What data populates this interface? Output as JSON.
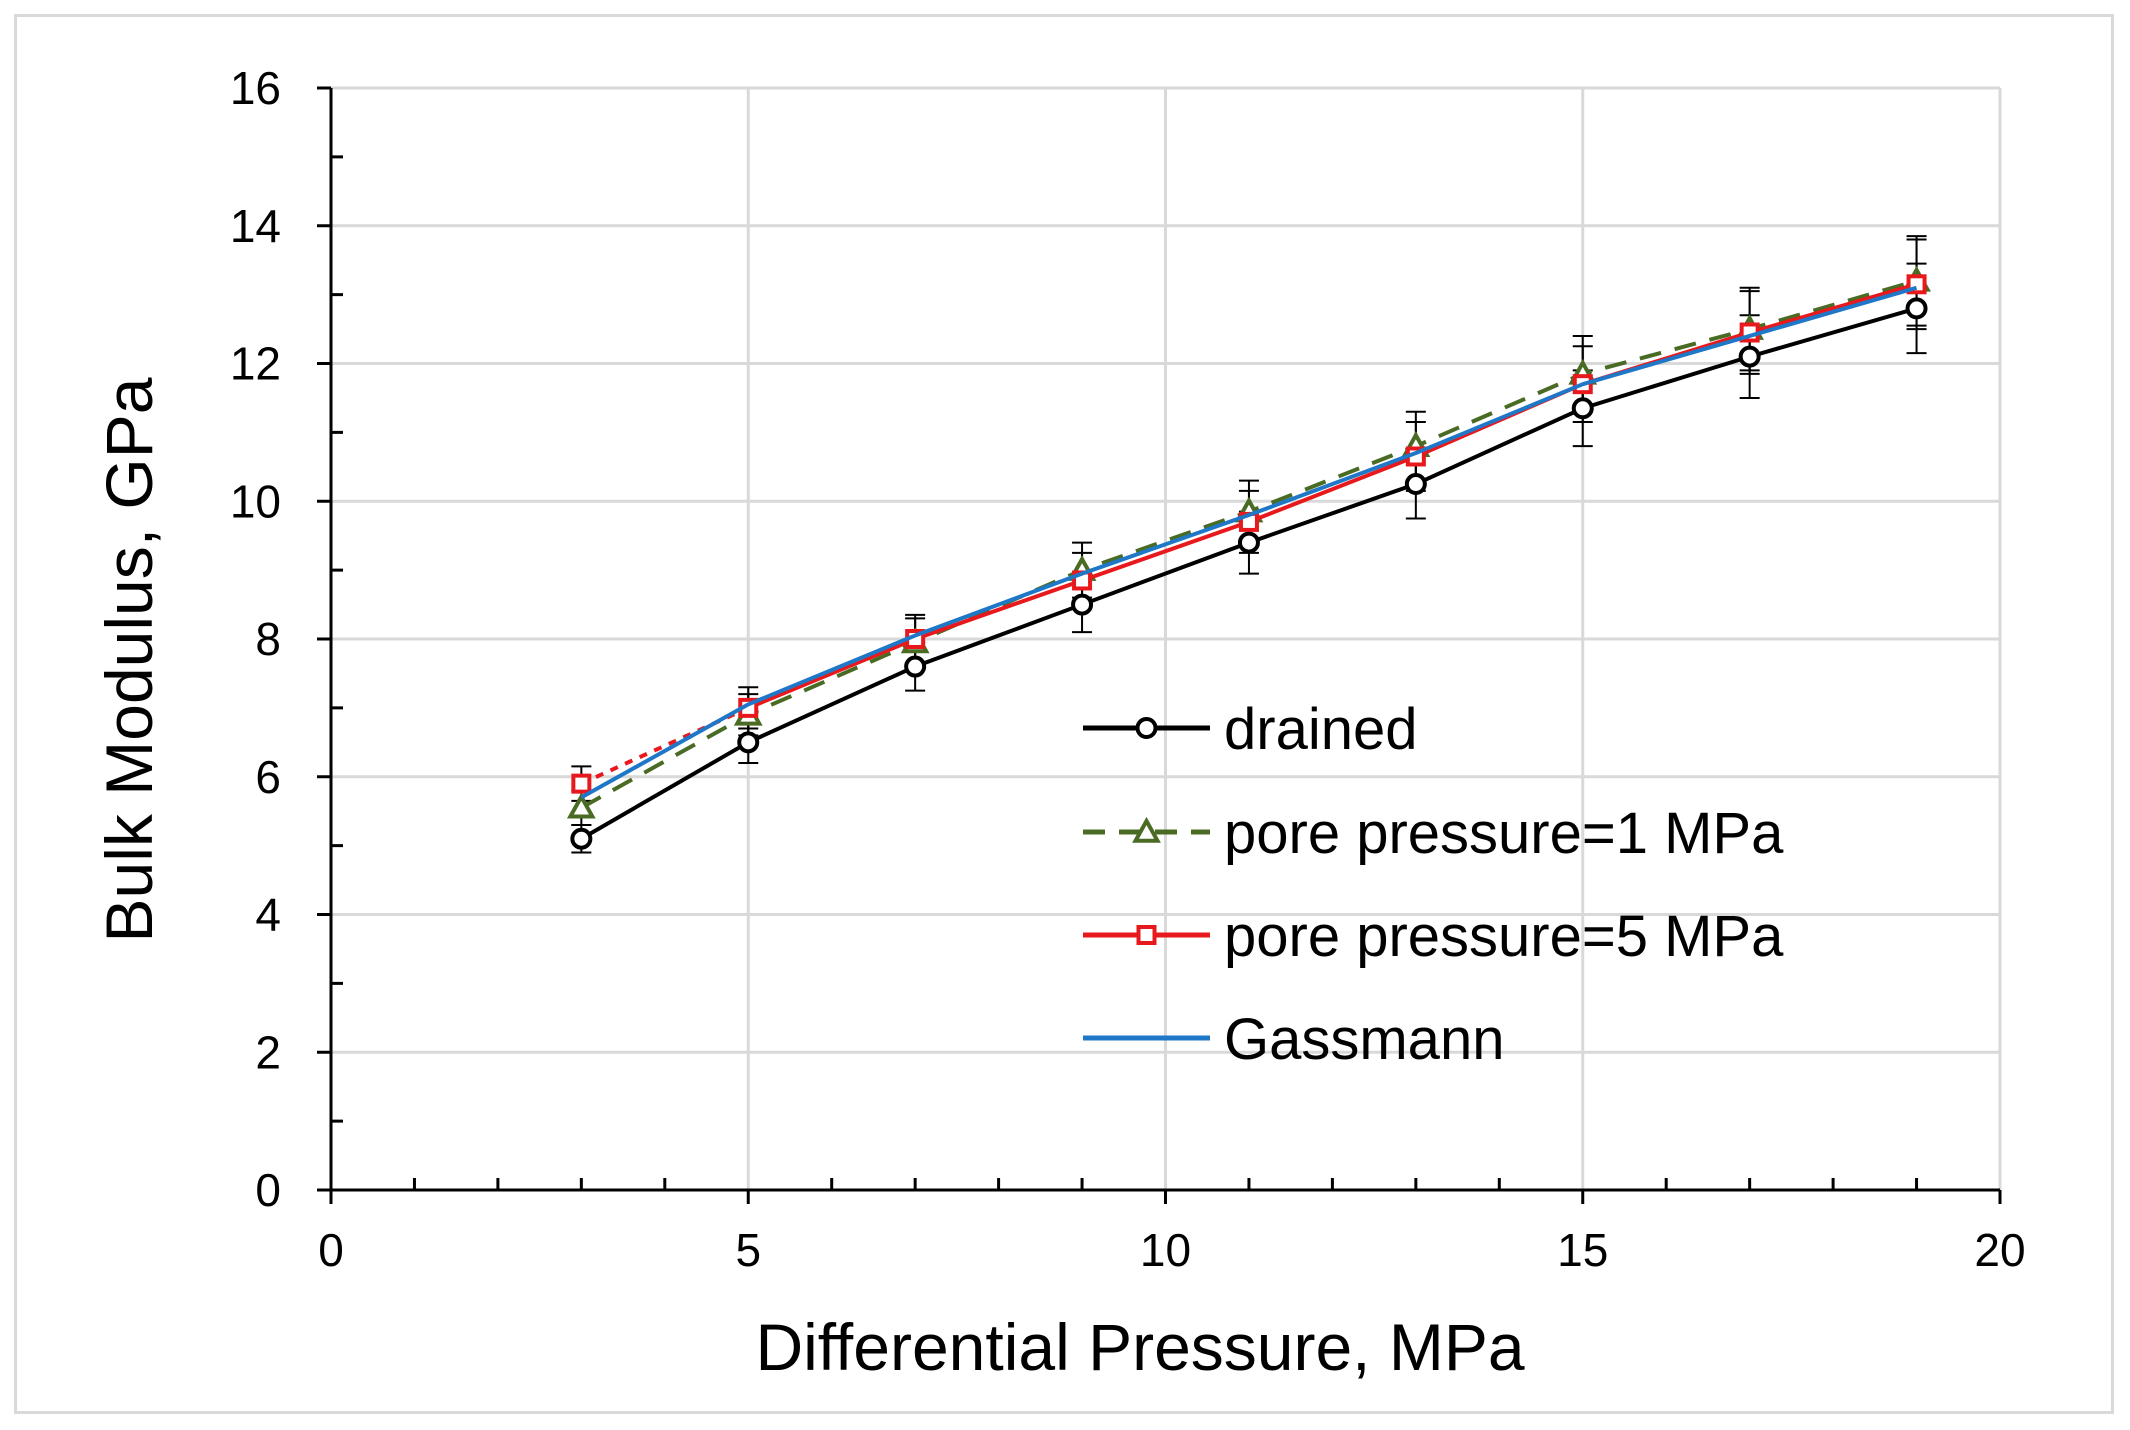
{
  "chart_data": {
    "type": "line",
    "title": "",
    "xlabel": "Differential Pressure, MPa",
    "ylabel": "Bulk Modulus, GPa",
    "xlim": [
      0,
      20
    ],
    "ylim": [
      0,
      16
    ],
    "xticks": [
      0,
      5,
      10,
      15,
      20
    ],
    "yticks": [
      0,
      2,
      4,
      6,
      8,
      10,
      12,
      14,
      16
    ],
    "x_minor_step": 1,
    "y_minor_step": 1,
    "grid": true,
    "legend_position": "center-right",
    "series": [
      {
        "name": "drained",
        "color": "#000000",
        "dash": "solid",
        "marker": "circle",
        "x": [
          3,
          5,
          7,
          9,
          11,
          13,
          15,
          17,
          19
        ],
        "y": [
          5.1,
          6.5,
          7.6,
          8.5,
          9.4,
          10.25,
          11.35,
          12.1,
          12.8
        ],
        "error": [
          0.2,
          0.3,
          0.35,
          0.4,
          0.45,
          0.5,
          0.55,
          0.6,
          0.65
        ]
      },
      {
        "name": "pore pressure=1 MPa",
        "color": "#4a6b23",
        "dash": "dashed",
        "marker": "triangle",
        "x": [
          3,
          5,
          7,
          9,
          11,
          13,
          15,
          17,
          19
        ],
        "y": [
          5.55,
          6.9,
          7.95,
          9.0,
          9.85,
          10.8,
          11.85,
          12.5,
          13.2
        ],
        "error": [
          0.25,
          0.3,
          0.35,
          0.4,
          0.45,
          0.5,
          0.55,
          0.6,
          0.65
        ]
      },
      {
        "name": "pore pressure=5 MPa",
        "color": "#e8191c",
        "dash": "solid",
        "marker": "square",
        "x": [
          3,
          5,
          7,
          9,
          11,
          13,
          15,
          17,
          19
        ],
        "y": [
          5.9,
          7.0,
          8.0,
          8.85,
          9.7,
          10.65,
          11.7,
          12.45,
          13.15
        ],
        "error": [
          0.25,
          0.3,
          0.35,
          0.4,
          0.45,
          0.5,
          0.55,
          0.6,
          0.65
        ],
        "first_segment_dash": "dotted"
      },
      {
        "name": "Gassmann",
        "color": "#1f77c8",
        "dash": "solid",
        "marker": "none",
        "x": [
          3,
          5,
          7,
          9,
          11,
          13,
          15,
          17,
          19
        ],
        "y": [
          5.7,
          7.05,
          8.05,
          8.95,
          9.8,
          10.7,
          11.7,
          12.4,
          13.1
        ]
      }
    ]
  }
}
